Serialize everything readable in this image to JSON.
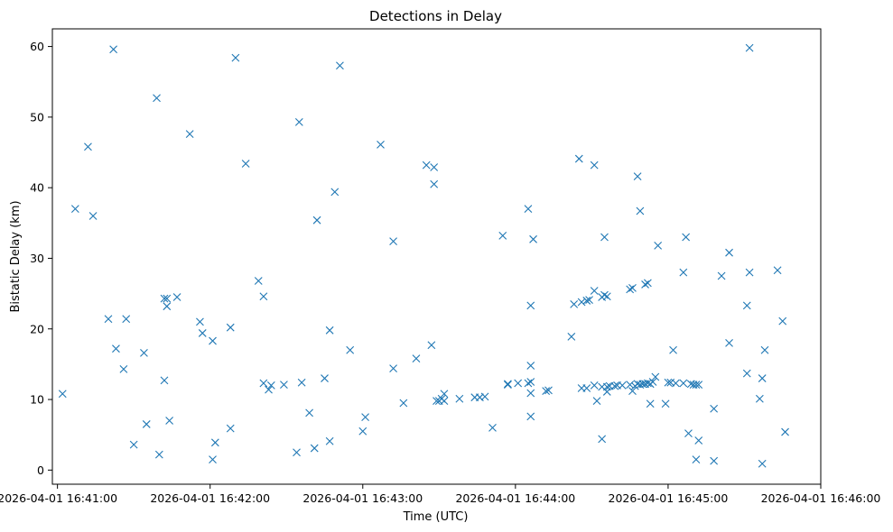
{
  "chart_data": {
    "type": "scatter",
    "title": "Detections in Delay",
    "xlabel": "Time (UTC)",
    "ylabel": "Bistatic Delay (km)",
    "marker": "x",
    "color": "#1f77b4",
    "grid": false,
    "xlim": [
      "2026-04-01 16:40:58",
      "2026-04-01 16:46:00"
    ],
    "ylim": [
      -2,
      62.5
    ],
    "x_ticks": [
      "2026-04-01 16:41:00",
      "2026-04-01 16:42:00",
      "2026-04-01 16:43:00",
      "2026-04-01 16:44:00",
      "2026-04-01 16:45:00",
      "2026-04-01 16:46:00"
    ],
    "y_ticks": [
      0,
      10,
      20,
      30,
      40,
      50,
      60
    ],
    "points": [
      [
        "2026-04-01 16:41:02",
        10.8
      ],
      [
        "2026-04-01 16:41:07",
        37.0
      ],
      [
        "2026-04-01 16:41:12",
        45.8
      ],
      [
        "2026-04-01 16:41:14",
        36.0
      ],
      [
        "2026-04-01 16:41:20",
        21.4
      ],
      [
        "2026-04-01 16:41:22",
        59.6
      ],
      [
        "2026-04-01 16:41:23",
        17.2
      ],
      [
        "2026-04-01 16:41:26",
        14.3
      ],
      [
        "2026-04-01 16:41:27",
        21.4
      ],
      [
        "2026-04-01 16:41:30",
        3.6
      ],
      [
        "2026-04-01 16:41:34",
        16.6
      ],
      [
        "2026-04-01 16:41:35",
        6.5
      ],
      [
        "2026-04-01 16:41:39",
        52.7
      ],
      [
        "2026-04-01 16:41:40",
        2.2
      ],
      [
        "2026-04-01 16:41:42",
        12.7
      ],
      [
        "2026-04-01 16:41:42",
        24.3
      ],
      [
        "2026-04-01 16:41:43",
        23.2
      ],
      [
        "2026-04-01 16:41:43",
        24.3
      ],
      [
        "2026-04-01 16:41:44",
        7.0
      ],
      [
        "2026-04-01 16:41:47",
        24.5
      ],
      [
        "2026-04-01 16:41:52",
        47.6
      ],
      [
        "2026-04-01 16:41:56",
        21.0
      ],
      [
        "2026-04-01 16:41:57",
        19.4
      ],
      [
        "2026-04-01 16:42:01",
        18.3
      ],
      [
        "2026-04-01 16:42:01",
        1.5
      ],
      [
        "2026-04-01 16:42:02",
        3.9
      ],
      [
        "2026-04-01 16:42:08",
        20.2
      ],
      [
        "2026-04-01 16:42:08",
        5.9
      ],
      [
        "2026-04-01 16:42:10",
        58.4
      ],
      [
        "2026-04-01 16:42:14",
        43.4
      ],
      [
        "2026-04-01 16:42:19",
        26.8
      ],
      [
        "2026-04-01 16:42:21",
        24.6
      ],
      [
        "2026-04-01 16:42:21",
        12.3
      ],
      [
        "2026-04-01 16:42:23",
        11.4
      ],
      [
        "2026-04-01 16:42:24",
        12.0
      ],
      [
        "2026-04-01 16:42:29",
        12.1
      ],
      [
        "2026-04-01 16:42:34",
        2.5
      ],
      [
        "2026-04-01 16:42:35",
        49.3
      ],
      [
        "2026-04-01 16:42:36",
        12.4
      ],
      [
        "2026-04-01 16:42:39",
        8.1
      ],
      [
        "2026-04-01 16:42:41",
        3.1
      ],
      [
        "2026-04-01 16:42:42",
        35.4
      ],
      [
        "2026-04-01 16:42:45",
        13.0
      ],
      [
        "2026-04-01 16:42:47",
        19.8
      ],
      [
        "2026-04-01 16:42:47",
        4.1
      ],
      [
        "2026-04-01 16:42:49",
        39.4
      ],
      [
        "2026-04-01 16:42:51",
        57.3
      ],
      [
        "2026-04-01 16:42:55",
        17.0
      ],
      [
        "2026-04-01 16:43:00",
        5.5
      ],
      [
        "2026-04-01 16:43:01",
        7.5
      ],
      [
        "2026-04-01 16:43:07",
        46.1
      ],
      [
        "2026-04-01 16:43:12",
        14.4
      ],
      [
        "2026-04-01 16:43:12",
        32.4
      ],
      [
        "2026-04-01 16:43:16",
        9.5
      ],
      [
        "2026-04-01 16:43:21",
        15.8
      ],
      [
        "2026-04-01 16:43:25",
        43.2
      ],
      [
        "2026-04-01 16:43:27",
        17.7
      ],
      [
        "2026-04-01 16:43:28",
        42.9
      ],
      [
        "2026-04-01 16:43:28",
        40.5
      ],
      [
        "2026-04-01 16:43:29",
        9.8
      ],
      [
        "2026-04-01 16:43:30",
        9.8
      ],
      [
        "2026-04-01 16:43:31",
        10.1
      ],
      [
        "2026-04-01 16:43:32",
        9.8
      ],
      [
        "2026-04-01 16:43:32",
        10.8
      ],
      [
        "2026-04-01 16:43:38",
        10.1
      ],
      [
        "2026-04-01 16:43:44",
        10.3
      ],
      [
        "2026-04-01 16:43:46",
        10.3
      ],
      [
        "2026-04-01 16:43:48",
        10.4
      ],
      [
        "2026-04-01 16:43:51",
        6.0
      ],
      [
        "2026-04-01 16:43:55",
        33.2
      ],
      [
        "2026-04-01 16:43:57",
        12.1
      ],
      [
        "2026-04-01 16:43:57",
        12.2
      ],
      [
        "2026-04-01 16:44:01",
        12.3
      ],
      [
        "2026-04-01 16:44:05",
        37.0
      ],
      [
        "2026-04-01 16:44:05",
        12.3
      ],
      [
        "2026-04-01 16:44:06",
        12.5
      ],
      [
        "2026-04-01 16:44:06",
        23.3
      ],
      [
        "2026-04-01 16:44:06",
        14.8
      ],
      [
        "2026-04-01 16:44:06",
        10.9
      ],
      [
        "2026-04-01 16:44:06",
        7.6
      ],
      [
        "2026-04-01 16:44:07",
        32.7
      ],
      [
        "2026-04-01 16:44:12",
        11.2
      ],
      [
        "2026-04-01 16:44:13",
        11.3
      ],
      [
        "2026-04-01 16:44:22",
        18.9
      ],
      [
        "2026-04-01 16:44:23",
        23.5
      ],
      [
        "2026-04-01 16:44:25",
        44.1
      ],
      [
        "2026-04-01 16:44:26",
        11.6
      ],
      [
        "2026-04-01 16:44:26",
        23.8
      ],
      [
        "2026-04-01 16:44:28",
        11.6
      ],
      [
        "2026-04-01 16:44:28",
        24.0
      ],
      [
        "2026-04-01 16:44:29",
        24.1
      ],
      [
        "2026-04-01 16:44:31",
        43.2
      ],
      [
        "2026-04-01 16:44:31",
        25.4
      ],
      [
        "2026-04-01 16:44:31",
        12.0
      ],
      [
        "2026-04-01 16:44:32",
        9.8
      ],
      [
        "2026-04-01 16:44:34",
        24.5
      ],
      [
        "2026-04-01 16:44:34",
        4.4
      ],
      [
        "2026-04-01 16:44:34",
        11.8
      ],
      [
        "2026-04-01 16:44:35",
        24.8
      ],
      [
        "2026-04-01 16:44:35",
        33.0
      ],
      [
        "2026-04-01 16:44:36",
        24.6
      ],
      [
        "2026-04-01 16:44:36",
        11.8
      ],
      [
        "2026-04-01 16:44:36",
        11.1
      ],
      [
        "2026-04-01 16:44:37",
        11.9
      ],
      [
        "2026-04-01 16:44:39",
        11.9
      ],
      [
        "2026-04-01 16:44:40",
        12.0
      ],
      [
        "2026-04-01 16:44:42",
        12.0
      ],
      [
        "2026-04-01 16:44:45",
        12.1
      ],
      [
        "2026-04-01 16:44:45",
        25.6
      ],
      [
        "2026-04-01 16:44:46",
        25.8
      ],
      [
        "2026-04-01 16:44:46",
        11.2
      ],
      [
        "2026-04-01 16:44:47",
        11.9
      ],
      [
        "2026-04-01 16:44:48",
        12.2
      ],
      [
        "2026-04-01 16:44:48",
        41.6
      ],
      [
        "2026-04-01 16:44:49",
        12.1
      ],
      [
        "2026-04-01 16:44:49",
        36.7
      ],
      [
        "2026-04-01 16:44:50",
        12.2
      ],
      [
        "2026-04-01 16:44:51",
        12.2
      ],
      [
        "2026-04-01 16:44:51",
        26.3
      ],
      [
        "2026-04-01 16:44:52",
        26.5
      ],
      [
        "2026-04-01 16:44:52",
        12.3
      ],
      [
        "2026-04-01 16:44:53",
        12.2
      ],
      [
        "2026-04-01 16:44:53",
        9.4
      ],
      [
        "2026-04-01 16:44:54",
        12.5
      ],
      [
        "2026-04-01 16:44:55",
        13.2
      ],
      [
        "2026-04-01 16:44:56",
        31.8
      ],
      [
        "2026-04-01 16:44:59",
        9.4
      ],
      [
        "2026-04-01 16:45:00",
        12.4
      ],
      [
        "2026-04-01 16:45:01",
        12.4
      ],
      [
        "2026-04-01 16:45:02",
        17.0
      ],
      [
        "2026-04-01 16:45:03",
        12.3
      ],
      [
        "2026-04-01 16:45:06",
        28.0
      ],
      [
        "2026-04-01 16:45:06",
        12.3
      ],
      [
        "2026-04-01 16:45:07",
        33.0
      ],
      [
        "2026-04-01 16:45:08",
        5.2
      ],
      [
        "2026-04-01 16:45:09",
        12.2
      ],
      [
        "2026-04-01 16:45:10",
        12.1
      ],
      [
        "2026-04-01 16:45:11",
        1.5
      ],
      [
        "2026-04-01 16:45:11",
        12.1
      ],
      [
        "2026-04-01 16:45:12",
        12.1
      ],
      [
        "2026-04-01 16:45:12",
        4.2
      ],
      [
        "2026-04-01 16:45:18",
        8.7
      ],
      [
        "2026-04-01 16:45:18",
        1.3
      ],
      [
        "2026-04-01 16:45:21",
        27.5
      ],
      [
        "2026-04-01 16:45:24",
        18.0
      ],
      [
        "2026-04-01 16:45:24",
        30.8
      ],
      [
        "2026-04-01 16:45:31",
        13.7
      ],
      [
        "2026-04-01 16:45:31",
        23.3
      ],
      [
        "2026-04-01 16:45:32",
        28.0
      ],
      [
        "2026-04-01 16:45:32",
        59.8
      ],
      [
        "2026-04-01 16:45:36",
        10.1
      ],
      [
        "2026-04-01 16:45:37",
        13.0
      ],
      [
        "2026-04-01 16:45:37",
        0.9
      ],
      [
        "2026-04-01 16:45:38",
        17.0
      ],
      [
        "2026-04-01 16:45:43",
        28.3
      ],
      [
        "2026-04-01 16:45:45",
        21.1
      ],
      [
        "2026-04-01 16:45:46",
        5.4
      ]
    ]
  }
}
